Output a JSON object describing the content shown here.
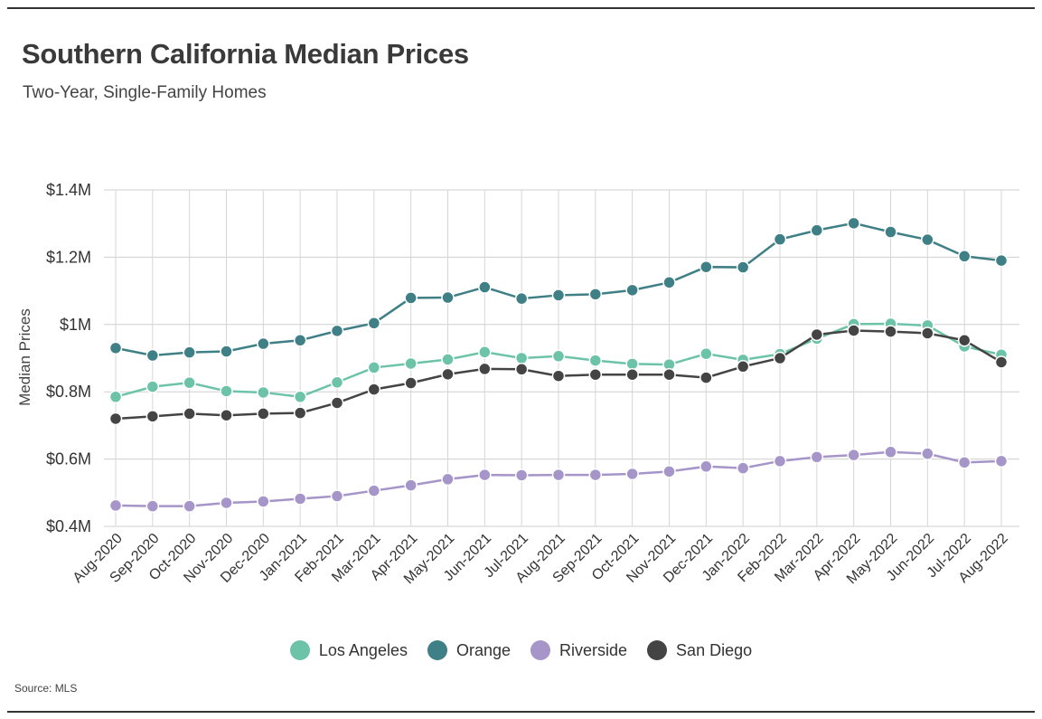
{
  "header": {
    "title": "Southern California Median Prices",
    "subtitle": "Two-Year, Single-Family Homes"
  },
  "footer": {
    "source": "Source:  MLS"
  },
  "chart_data": {
    "type": "line",
    "title": "Southern California Median Prices",
    "subtitle": "Two-Year, Single-Family Homes",
    "xlabel": "",
    "ylabel": "Median Prices",
    "ylim": [
      400000,
      1400000
    ],
    "yticks": [
      400000,
      600000,
      800000,
      1000000,
      1200000,
      1400000
    ],
    "ytick_labels": [
      "$0.4M",
      "$0.6M",
      "$0.8M",
      "$1M",
      "$1.2M",
      "$1.4M"
    ],
    "grid": true,
    "legend_position": "bottom",
    "categories": [
      "Aug-2020",
      "Sep-2020",
      "Oct-2020",
      "Nov-2020",
      "Dec-2020",
      "Jan-2021",
      "Feb-2021",
      "Mar-2021",
      "Apr-2021",
      "May-2021",
      "Jun-2021",
      "Jul-2021",
      "Aug-2021",
      "Sep-2021",
      "Oct-2021",
      "Nov-2021",
      "Dec-2021",
      "Jan-2022",
      "Feb-2022",
      "Mar-2022",
      "Apr-2022",
      "May-2022",
      "Jun-2022",
      "Jul-2022",
      "Aug-2022"
    ],
    "series": [
      {
        "name": "Los Angeles",
        "color": "#6cc3a8",
        "values": [
          785000,
          815000,
          827000,
          802000,
          798000,
          785000,
          828000,
          872000,
          884000,
          896000,
          918000,
          900000,
          906000,
          893000,
          883000,
          881000,
          913000,
          895000,
          912000,
          958000,
          1001000,
          1002000,
          997000,
          935000,
          910000
        ]
      },
      {
        "name": "Orange",
        "color": "#3f7f86",
        "values": [
          930000,
          908000,
          917000,
          920000,
          943000,
          953000,
          981000,
          1004000,
          1079000,
          1080000,
          1111000,
          1077000,
          1087000,
          1090000,
          1102000,
          1125000,
          1171000,
          1170000,
          1253000,
          1280000,
          1301000,
          1275000,
          1252000,
          1203000,
          1190000
        ]
      },
      {
        "name": "Riverside",
        "color": "#a595c8",
        "values": [
          462000,
          460000,
          460000,
          470000,
          474000,
          482000,
          490000,
          506000,
          522000,
          540000,
          553000,
          552000,
          553000,
          553000,
          556000,
          563000,
          578000,
          573000,
          594000,
          606000,
          612000,
          621000,
          616000,
          590000,
          594000
        ]
      },
      {
        "name": "San Diego",
        "color": "#444444",
        "values": [
          720000,
          727000,
          735000,
          730000,
          735000,
          737000,
          767000,
          807000,
          826000,
          852000,
          868000,
          867000,
          847000,
          851000,
          851000,
          851000,
          842000,
          875000,
          900000,
          970000,
          982000,
          979000,
          974000,
          953000,
          888000
        ]
      }
    ]
  }
}
